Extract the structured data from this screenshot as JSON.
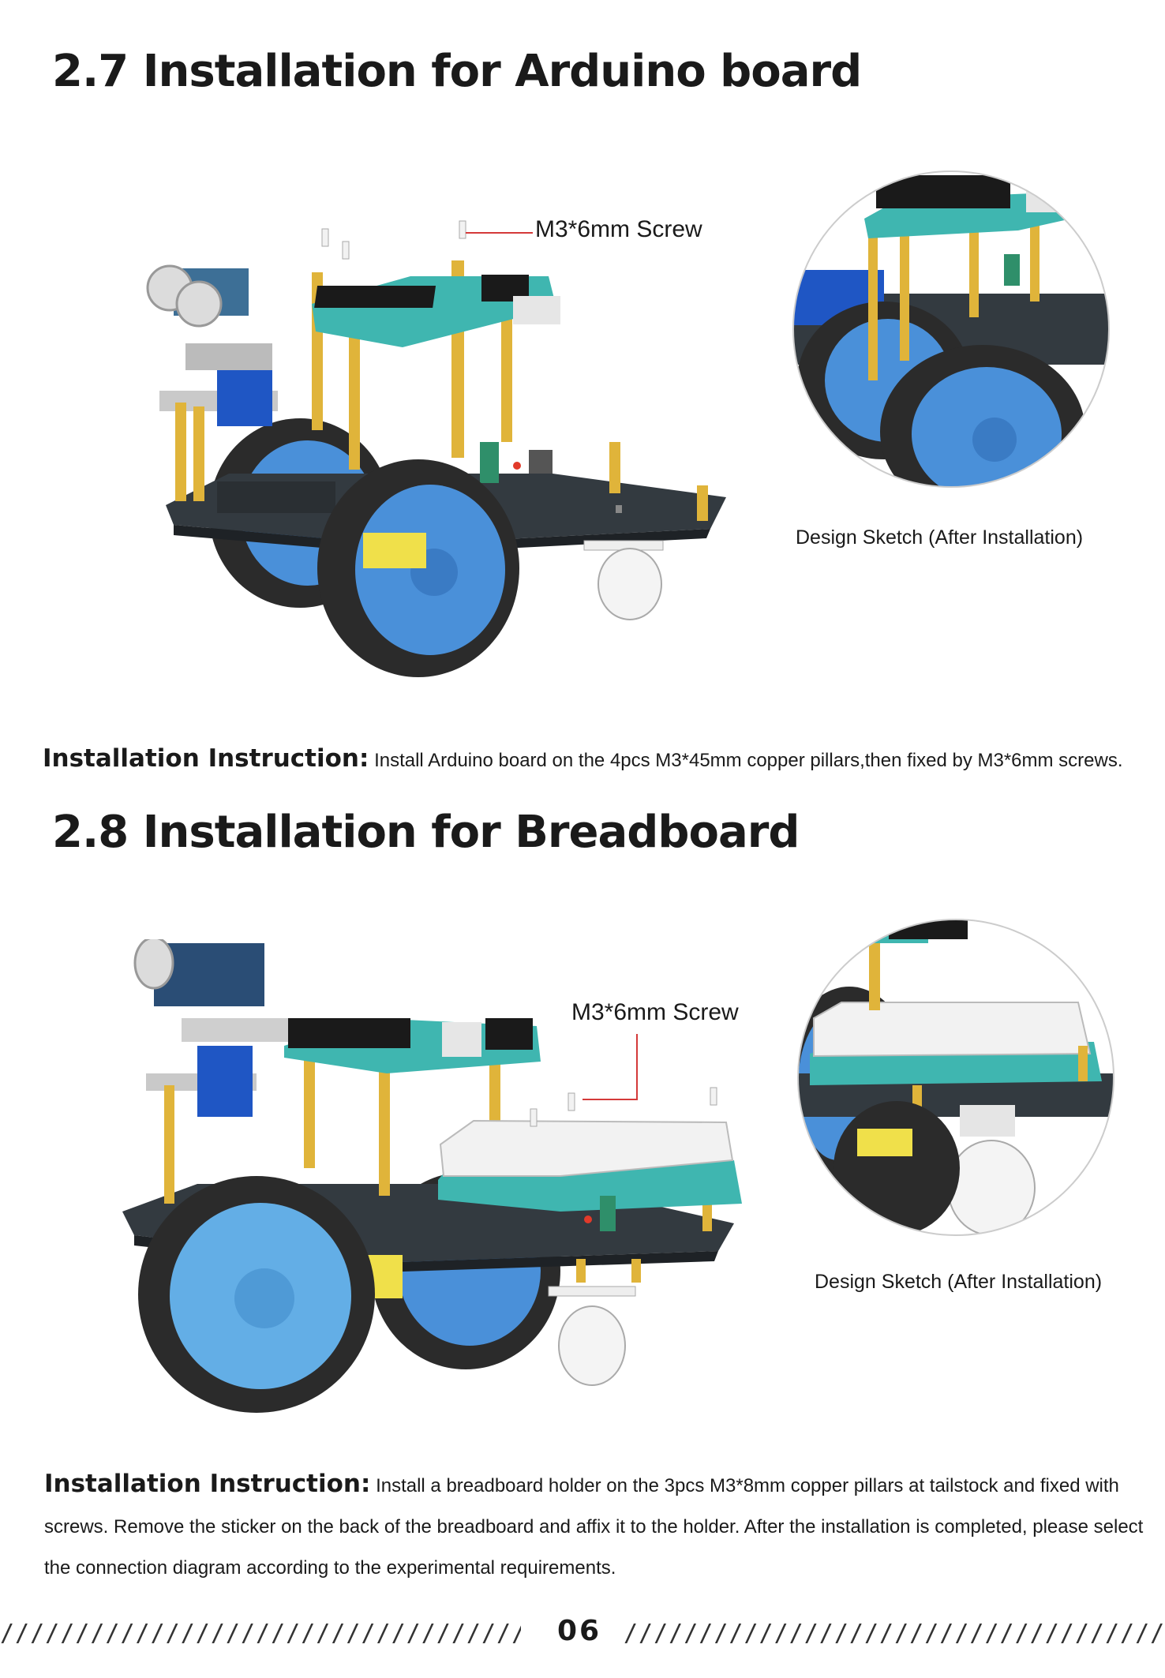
{
  "section_27": {
    "title": "2.7 Installation for Arduino board",
    "screw_label": "M3*6mm Screw",
    "caption": "Design Sketch (After Installation)",
    "instruction_head": "Installation Instruction:",
    "instruction_body": "Install Arduino board on the 4pcs M3*45mm copper pillars,then fixed by M3*6mm screws."
  },
  "section_28": {
    "title": "2.8 Installation for Breadboard",
    "screw_label": "M3*6mm Screw",
    "caption": "Design Sketch (After Installation)",
    "instruction_head": "Installation Instruction:",
    "instruction_body": "Install a breadboard holder on the 3pcs M3*8mm copper pillars at tailstock and fixed with screws. Remove the sticker on the back of the breadboard and affix it to the holder. After the installation is completed, please select the connection diagram according to the experimental requirements."
  },
  "footer": {
    "page_number": "06",
    "slash_left": "////////////////////////////////////////////////",
    "slash_right": "//////////////////////////////////////////////////"
  },
  "colors": {
    "wheel_blue": "#4a90d9",
    "tire": "#2b2b2b",
    "chassis": "#333a40",
    "pillar_gold": "#e0b43a",
    "pcb_teal": "#3fb6b0",
    "header_black": "#1a1a1a",
    "servo_blue": "#1f56c4",
    "leader_red": "#d43a3a"
  }
}
